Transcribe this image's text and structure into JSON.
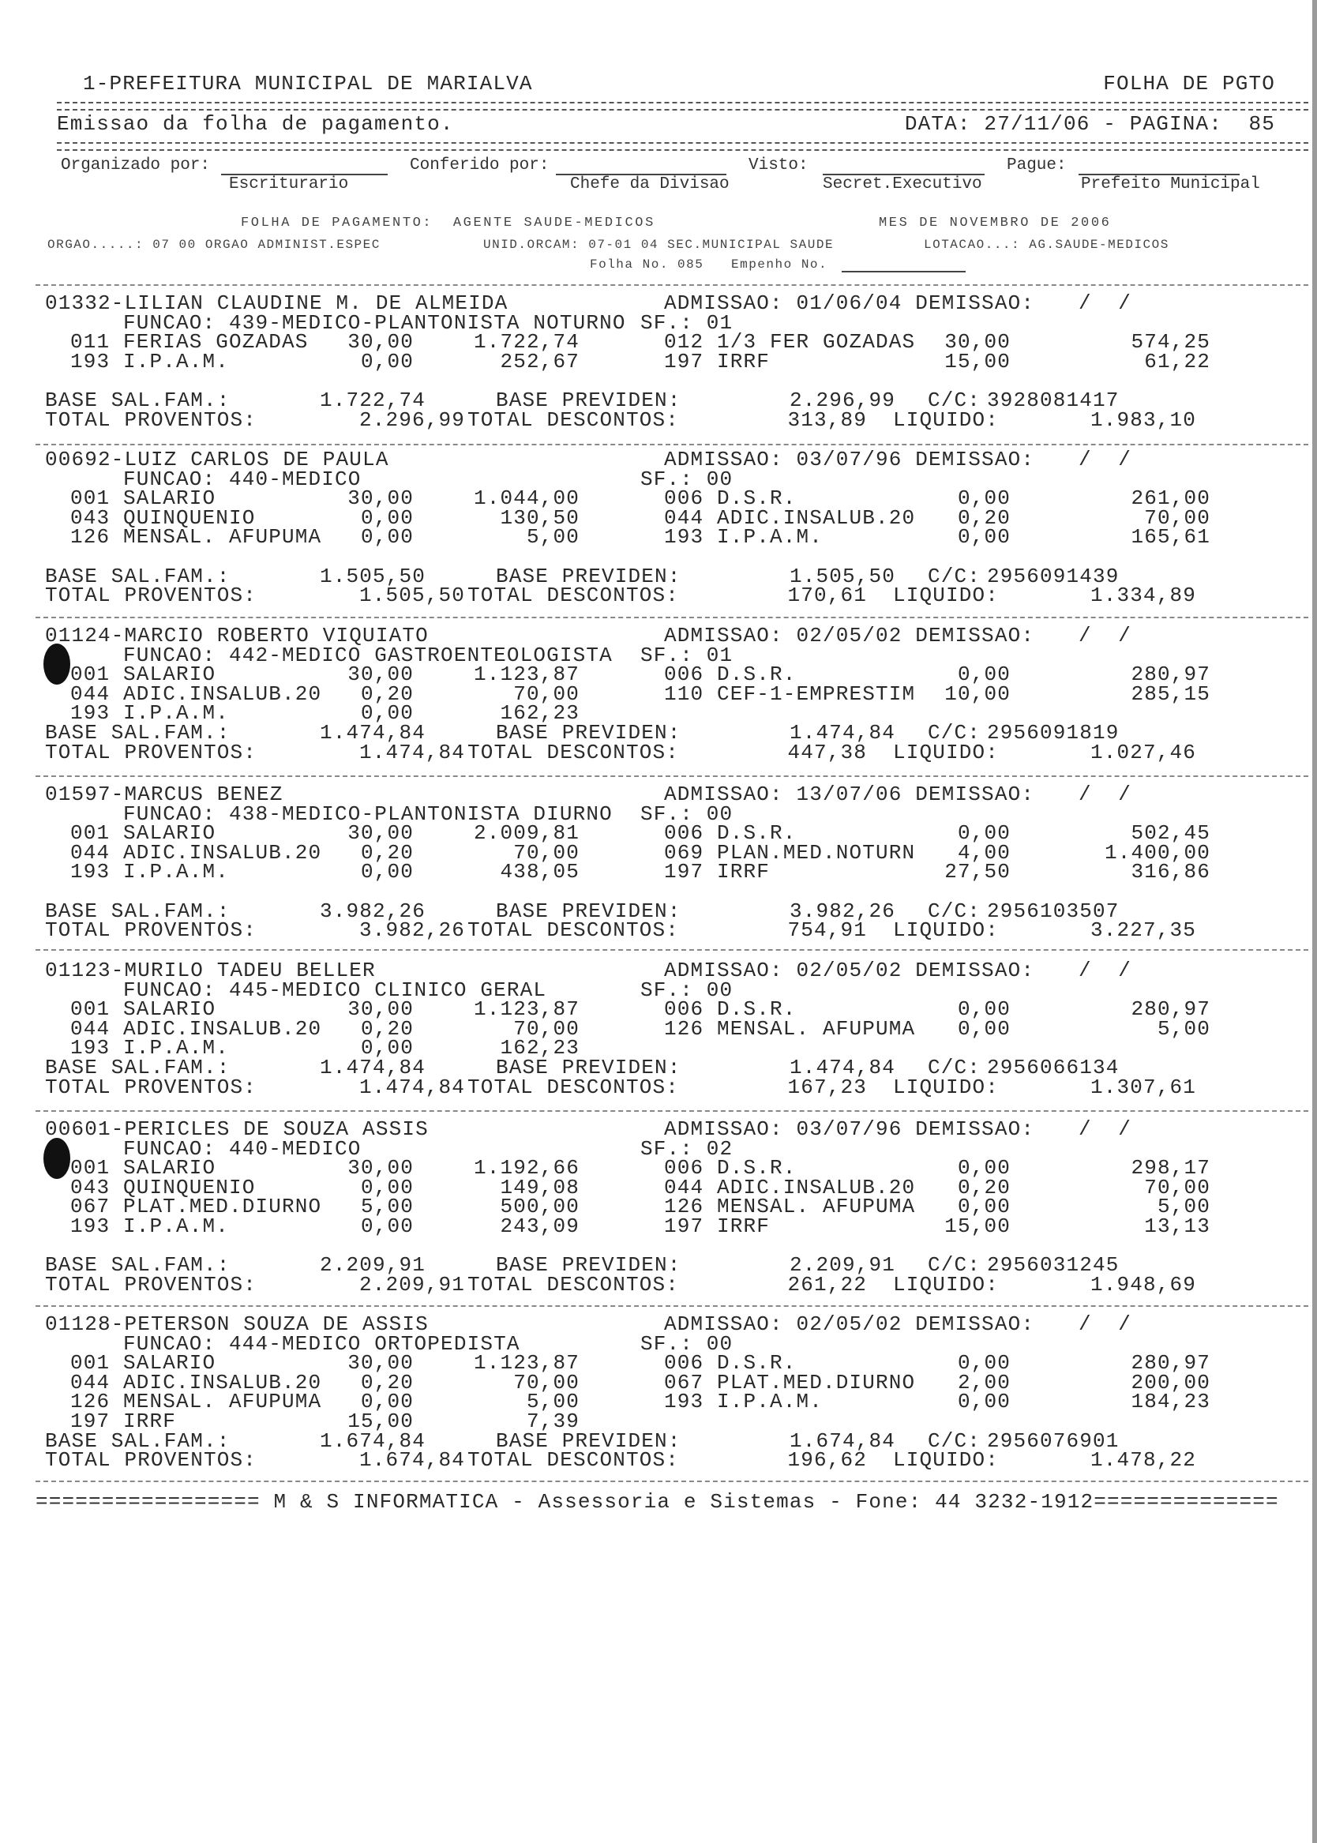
{
  "header": {
    "title": "1-PREFEITURA MUNICIPAL DE MARIALVA",
    "doc_type": "FOLHA DE PGTO",
    "subtitle": "Emissao da folha de pagamento.",
    "date_page": "DATA: 27/11/06 - PAGINA:  85"
  },
  "signatures": {
    "organizado": "Organizado por:",
    "conferido": "Conferido por:",
    "visto": "Visto:",
    "pague": "Pague:",
    "escriturario": "Escriturario",
    "chefe": "Chefe da Divisao",
    "secret": "Secret.Executivo",
    "prefeito": "Prefeito Municipal"
  },
  "info": {
    "folha": "FOLHA DE PAGAMENTO:  AGENTE SAUDE-MEDICOS",
    "mes": "MES DE NOVEMBRO DE 2006",
    "orgao": "ORGAO.....: 07 00 ORGAO ADMINIST.ESPEC",
    "unid": "UNID.ORCAM: 07-01 04 SEC.MUNICIPAL SAUDE",
    "lotacao": "LOTACAO...: AG.SAUDE-MEDICOS",
    "folha_no": "Folha No. 085",
    "empenho": "Empenho No."
  },
  "labels": {
    "base_sal_fam": "BASE SAL.FAM.:",
    "base_previden": "BASE PREVIDEN:",
    "cc": "C/C:",
    "total_proventos": "TOTAL PROVENTOS:",
    "total_descontos": "TOTAL DESCONTOS:",
    "liquido": "LIQUIDO:"
  },
  "employees": [
    {
      "name": "01332-LILIAN CLAUDINE M. DE ALMEIDA",
      "admissao": "ADMISSAO: 01/06/04 DEMISSAO:",
      "demissao": "/  /",
      "funcao": "FUNCAO: 439-MEDICO-PLANTONISTA NOTURNO",
      "sf": "SF.: 01",
      "items": [
        [
          {
            "desc": "011 FERIAS GOZADAS",
            "qty": "30,00",
            "value": "1.722,74"
          },
          {
            "desc": "012 1/3 FER GOZADAS",
            "qty": "30,00",
            "value": "574,25"
          }
        ],
        [
          {
            "desc": "193 I.P.A.M.",
            "qty": "0,00",
            "value": "252,67"
          },
          {
            "desc": "197 IRRF",
            "qty": "15,00",
            "value": "61,22"
          }
        ]
      ],
      "base_sal_fam": "1.722,74",
      "base_previden": "2.296,99",
      "cc": "3928081417",
      "total_proventos": "2.296,99",
      "total_descontos": "313,89",
      "liquido": "1.983,10"
    },
    {
      "name": "00692-LUIZ CARLOS DE PAULA",
      "admissao": "ADMISSAO: 03/07/96 DEMISSAO:",
      "demissao": "/  /",
      "funcao": "FUNCAO: 440-MEDICO",
      "sf": "SF.: 00",
      "items": [
        [
          {
            "desc": "001 SALARIO",
            "qty": "30,00",
            "value": "1.044,00"
          },
          {
            "desc": "006 D.S.R.",
            "qty": "0,00",
            "value": "261,00"
          }
        ],
        [
          {
            "desc": "043 QUINQUENIO",
            "qty": "0,00",
            "value": "130,50"
          },
          {
            "desc": "044 ADIC.INSALUB.20",
            "qty": "0,20",
            "value": "70,00"
          }
        ],
        [
          {
            "desc": "126 MENSAL. AFUPUMA",
            "qty": "0,00",
            "value": "5,00"
          },
          {
            "desc": "193 I.P.A.M.",
            "qty": "0,00",
            "value": "165,61"
          }
        ]
      ],
      "base_sal_fam": "1.505,50",
      "base_previden": "1.505,50",
      "cc": "2956091439",
      "total_proventos": "1.505,50",
      "total_descontos": "170,61",
      "liquido": "1.334,89"
    },
    {
      "name": "01124-MARCIO ROBERTO VIQUIATO",
      "admissao": "ADMISSAO: 02/05/02 DEMISSAO:",
      "demissao": "/  /",
      "funcao": "FUNCAO: 442-MEDICO GASTROENTEOLOGISTA",
      "sf": "SF.: 01",
      "items": [
        [
          {
            "desc": "001 SALARIO",
            "qty": "30,00",
            "value": "1.123,87"
          },
          {
            "desc": "006 D.S.R.",
            "qty": "0,00",
            "value": "280,97"
          }
        ],
        [
          {
            "desc": "044 ADIC.INSALUB.20",
            "qty": "0,20",
            "value": "70,00"
          },
          {
            "desc": "110 CEF-1-EMPRESTIM",
            "qty": "10,00",
            "value": "285,15"
          }
        ],
        [
          {
            "desc": "193 I.P.A.M.",
            "qty": "0,00",
            "value": "162,23"
          }
        ]
      ],
      "base_sal_fam": "1.474,84",
      "base_previden": "1.474,84",
      "cc": "2956091819",
      "total_proventos": "1.474,84",
      "total_descontos": "447,38",
      "liquido": "1.027,46"
    },
    {
      "name": "01597-MARCUS BENEZ",
      "admissao": "ADMISSAO: 13/07/06 DEMISSAO:",
      "demissao": "/  /",
      "funcao": "FUNCAO: 438-MEDICO-PLANTONISTA DIURNO",
      "sf": "SF.: 00",
      "items": [
        [
          {
            "desc": "001 SALARIO",
            "qty": "30,00",
            "value": "2.009,81"
          },
          {
            "desc": "006 D.S.R.",
            "qty": "0,00",
            "value": "502,45"
          }
        ],
        [
          {
            "desc": "044 ADIC.INSALUB.20",
            "qty": "0,20",
            "value": "70,00"
          },
          {
            "desc": "069 PLAN.MED.NOTURN",
            "qty": "4,00",
            "value": "1.400,00"
          }
        ],
        [
          {
            "desc": "193 I.P.A.M.",
            "qty": "0,00",
            "value": "438,05"
          },
          {
            "desc": "197 IRRF",
            "qty": "27,50",
            "value": "316,86"
          }
        ]
      ],
      "base_sal_fam": "3.982,26",
      "base_previden": "3.982,26",
      "cc": "2956103507",
      "total_proventos": "3.982,26",
      "total_descontos": "754,91",
      "liquido": "3.227,35"
    },
    {
      "name": "01123-MURILO TADEU BELLER",
      "admissao": "ADMISSAO: 02/05/02 DEMISSAO:",
      "demissao": "/  /",
      "funcao": "FUNCAO: 445-MEDICO CLINICO GERAL",
      "sf": "SF.: 00",
      "items": [
        [
          {
            "desc": "001 SALARIO",
            "qty": "30,00",
            "value": "1.123,87"
          },
          {
            "desc": "006 D.S.R.",
            "qty": "0,00",
            "value": "280,97"
          }
        ],
        [
          {
            "desc": "044 ADIC.INSALUB.20",
            "qty": "0,20",
            "value": "70,00"
          },
          {
            "desc": "126 MENSAL. AFUPUMA",
            "qty": "0,00",
            "value": "5,00"
          }
        ],
        [
          {
            "desc": "193 I.P.A.M.",
            "qty": "0,00",
            "value": "162,23"
          }
        ]
      ],
      "base_sal_fam": "1.474,84",
      "base_previden": "1.474,84",
      "cc": "2956066134",
      "total_proventos": "1.474,84",
      "total_descontos": "167,23",
      "liquido": "1.307,61"
    },
    {
      "name": "00601-PERICLES DE SOUZA ASSIS",
      "admissao": "ADMISSAO: 03/07/96 DEMISSAO:",
      "demissao": "/  /",
      "funcao": "FUNCAO: 440-MEDICO",
      "sf": "SF.: 02",
      "items": [
        [
          {
            "desc": "001 SALARIO",
            "qty": "30,00",
            "value": "1.192,66"
          },
          {
            "desc": "006 D.S.R.",
            "qty": "0,00",
            "value": "298,17"
          }
        ],
        [
          {
            "desc": "043 QUINQUENIO",
            "qty": "0,00",
            "value": "149,08"
          },
          {
            "desc": "044 ADIC.INSALUB.20",
            "qty": "0,20",
            "value": "70,00"
          }
        ],
        [
          {
            "desc": "067 PLAT.MED.DIURNO",
            "qty": "5,00",
            "value": "500,00"
          },
          {
            "desc": "126 MENSAL. AFUPUMA",
            "qty": "0,00",
            "value": "5,00"
          }
        ],
        [
          {
            "desc": "193 I.P.A.M.",
            "qty": "0,00",
            "value": "243,09"
          },
          {
            "desc": "197 IRRF",
            "qty": "15,00",
            "value": "13,13"
          }
        ]
      ],
      "base_sal_fam": "2.209,91",
      "base_previden": "2.209,91",
      "cc": "2956031245",
      "total_proventos": "2.209,91",
      "total_descontos": "261,22",
      "liquido": "1.948,69"
    },
    {
      "name": "01128-PETERSON SOUZA DE ASSIS",
      "admissao": "ADMISSAO: 02/05/02 DEMISSAO:",
      "demissao": "/  /",
      "funcao": "FUNCAO: 444-MEDICO ORTOPEDISTA",
      "sf": "SF.: 00",
      "items": [
        [
          {
            "desc": "001 SALARIO",
            "qty": "30,00",
            "value": "1.123,87"
          },
          {
            "desc": "006 D.S.R.",
            "qty": "0,00",
            "value": "280,97"
          }
        ],
        [
          {
            "desc": "044 ADIC.INSALUB.20",
            "qty": "0,20",
            "value": "70,00"
          },
          {
            "desc": "067 PLAT.MED.DIURNO",
            "qty": "2,00",
            "value": "200,00"
          }
        ],
        [
          {
            "desc": "126 MENSAL. AFUPUMA",
            "qty": "0,00",
            "value": "5,00"
          },
          {
            "desc": "193 I.P.A.M.",
            "qty": "0,00",
            "value": "184,23"
          }
        ],
        [
          {
            "desc": "197 IRRF",
            "qty": "15,00",
            "value": "7,39"
          }
        ]
      ],
      "base_sal_fam": "1.674,84",
      "base_previden": "1.674,84",
      "cc": "2956076901",
      "total_proventos": "1.674,84",
      "total_descontos": "196,62",
      "liquido": "1.478,22"
    }
  ],
  "footer": "================= M & S INFORMATICA - Assessoria e Sistemas - Fone: 44 3232-1912=============="
}
